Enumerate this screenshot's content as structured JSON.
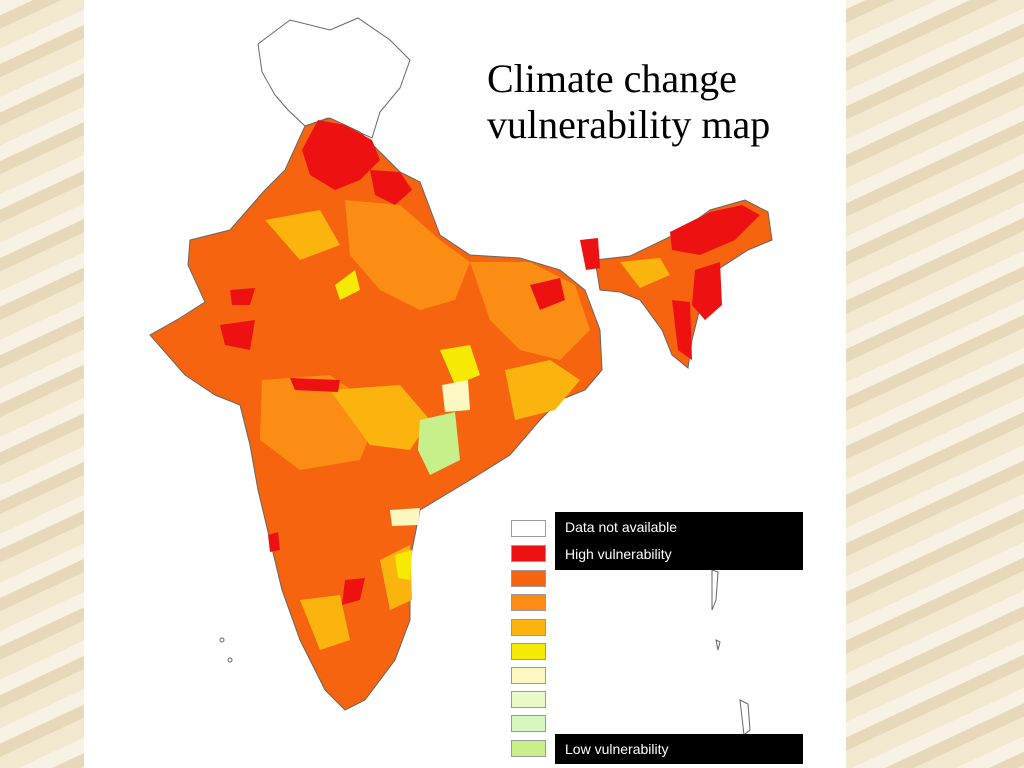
{
  "title": {
    "line1": "Climate change",
    "line2": "vulnerability map"
  },
  "legend": {
    "swatches": [
      "#ffffff",
      "#ee1111",
      "#f7640f",
      "#fb8d14",
      "#fbb40d",
      "#f6ea05",
      "#fdf7c2",
      "#e8fbc8",
      "#d6f7c0",
      "#c8f08a"
    ],
    "labels": {
      "data_not_available": "Data not available",
      "high": "High vulnerability",
      "low": "Low vulnerability"
    }
  },
  "colors": {
    "high": "#ee1111",
    "orange_red": "#f7640f",
    "orange": "#fb8d14",
    "amber": "#fbb40d",
    "yellow": "#f6ea05",
    "light_yellow": "#fdf7c2",
    "light_green": "#c8f08a"
  }
}
